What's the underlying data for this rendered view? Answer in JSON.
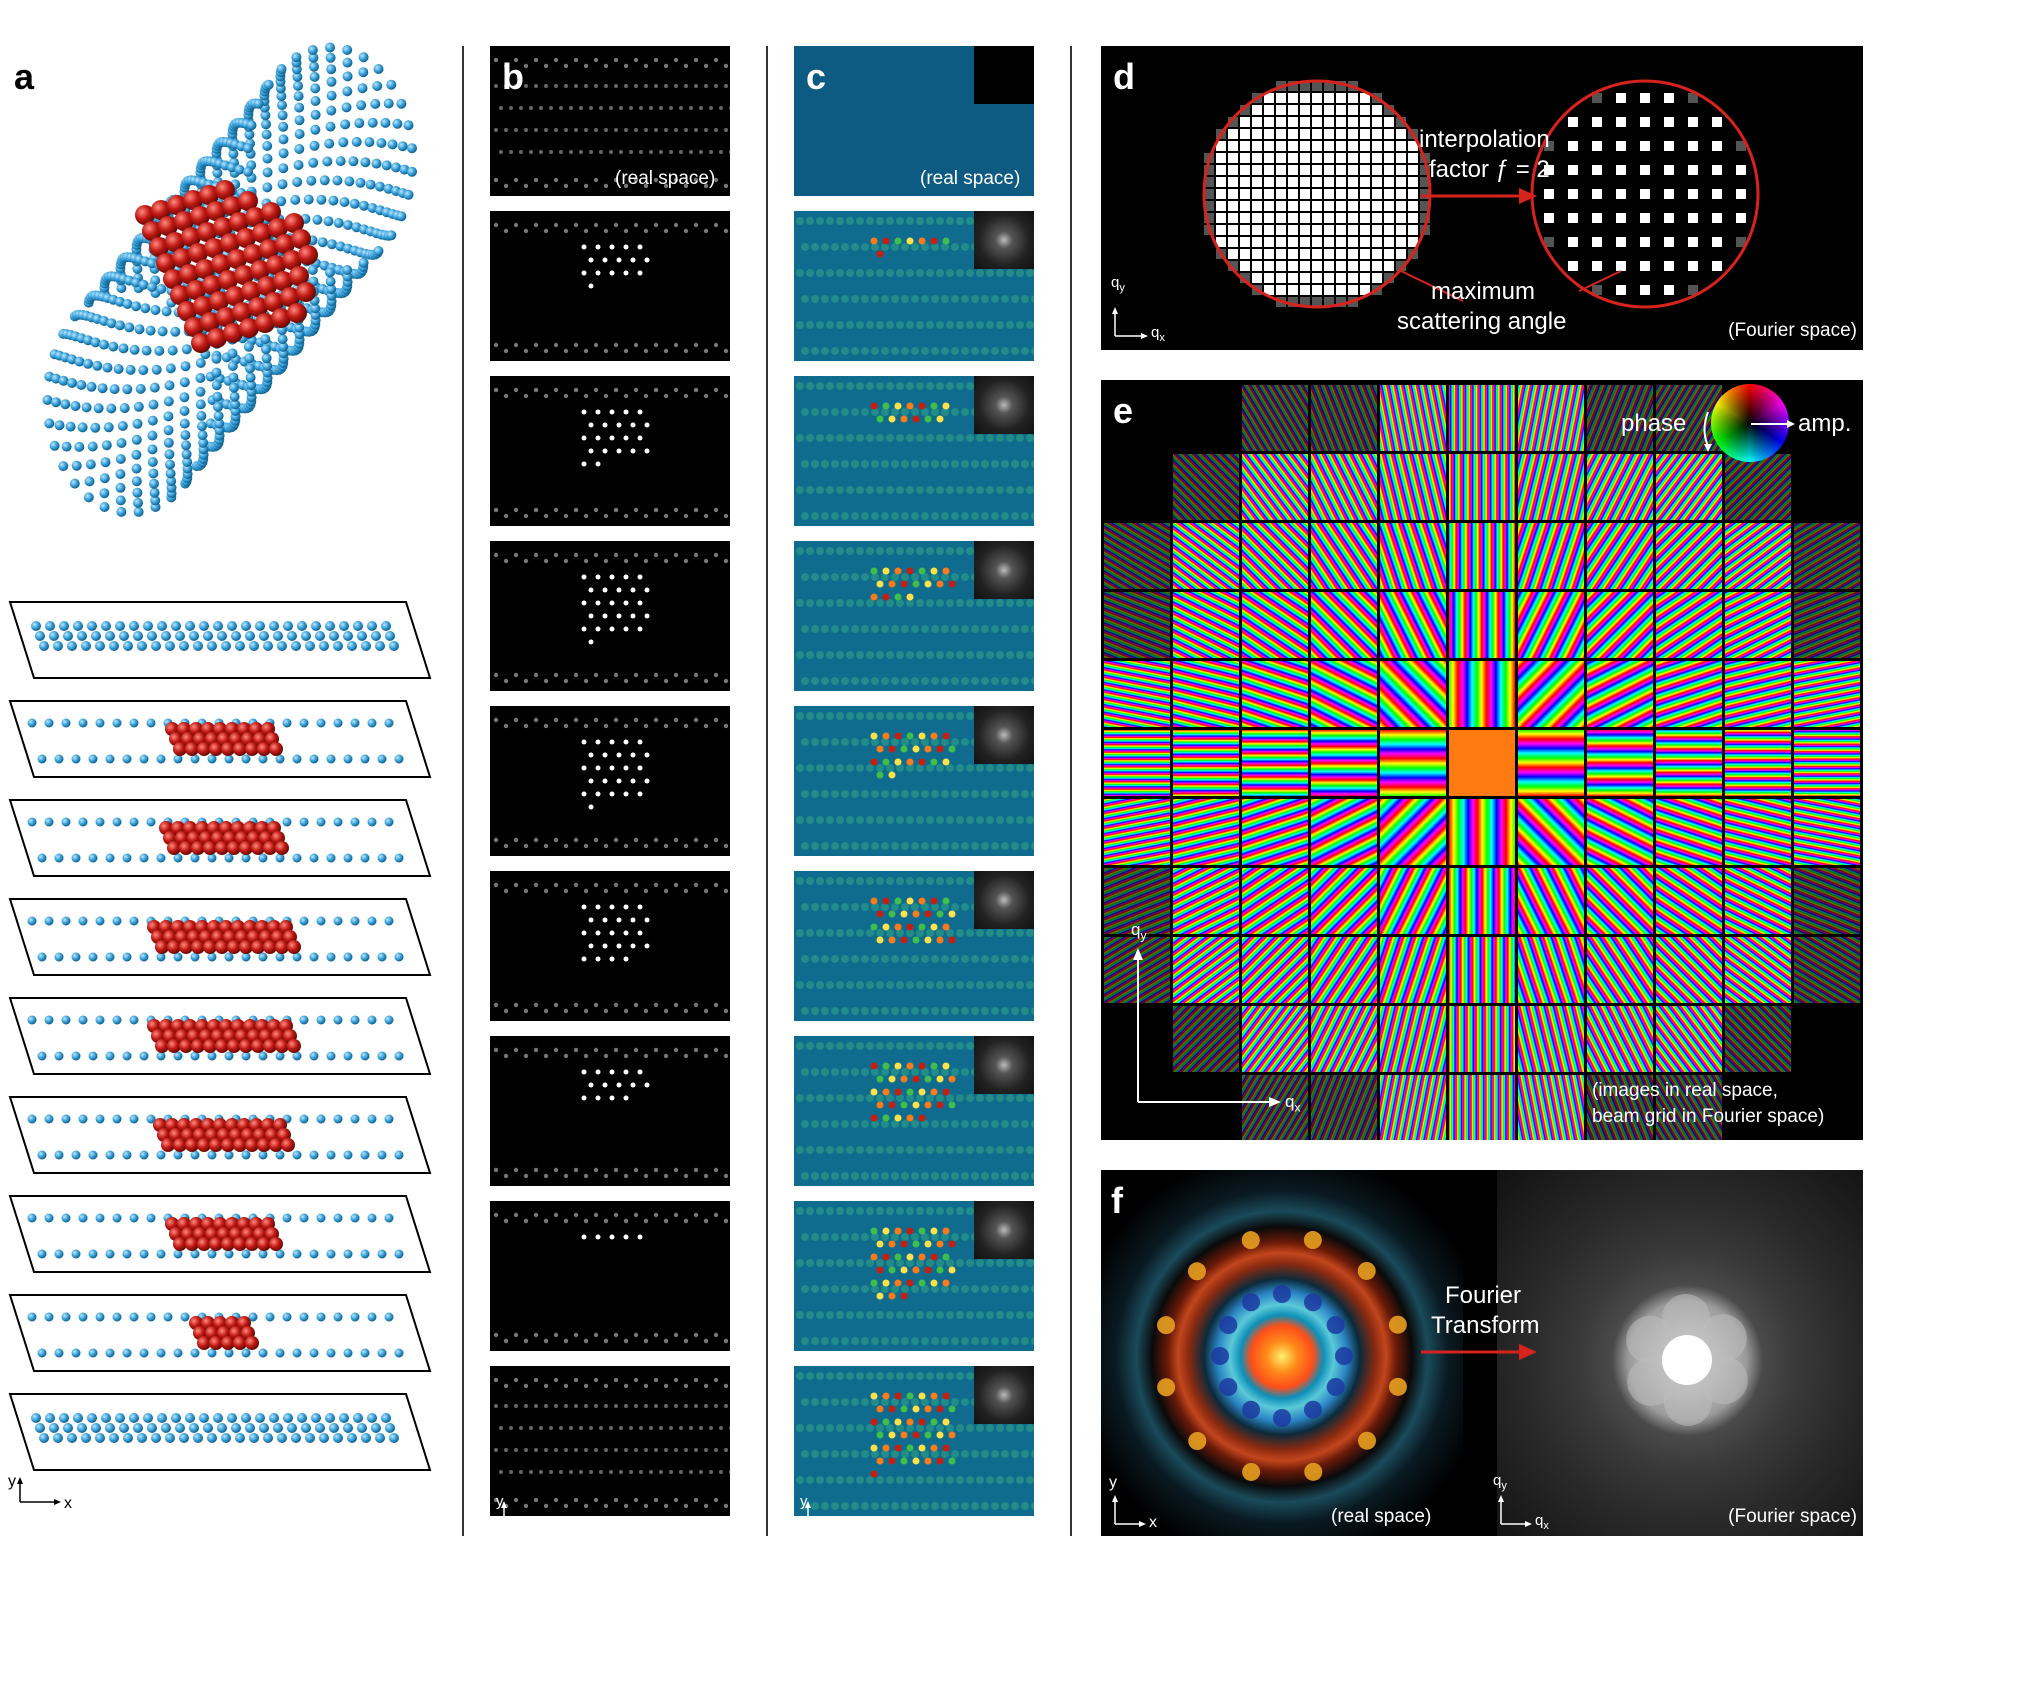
{
  "panels": {
    "a": "a",
    "b": "b",
    "c": "c",
    "d": "d",
    "e": "e",
    "f": "f"
  },
  "captions": {
    "real_space": "(real space)",
    "fourier_space": "(Fourier space)",
    "e_note_line1": "(images in real space,",
    "e_note_line2": "beam grid in Fourier space)"
  },
  "panel_d": {
    "interp_line1": "interpolation",
    "interp_line2": "factor ƒ = 2",
    "max_line1": "maximum",
    "max_line2": "scattering angle"
  },
  "panel_e": {
    "phase_label": "phase",
    "amp_label": "amp."
  },
  "panel_f": {
    "ft_line1": "Fourier",
    "ft_line2": "Transform"
  },
  "axes": {
    "x": "x",
    "y": "y",
    "qx_base": "q",
    "qx_sub": "x",
    "qy_base": "q",
    "qy_sub": "y"
  },
  "colors": {
    "carbon": "#3aa3dc",
    "metal": "#c21a14",
    "teal_bg": "#0d5a82",
    "arrow_red": "#d8231c"
  }
}
